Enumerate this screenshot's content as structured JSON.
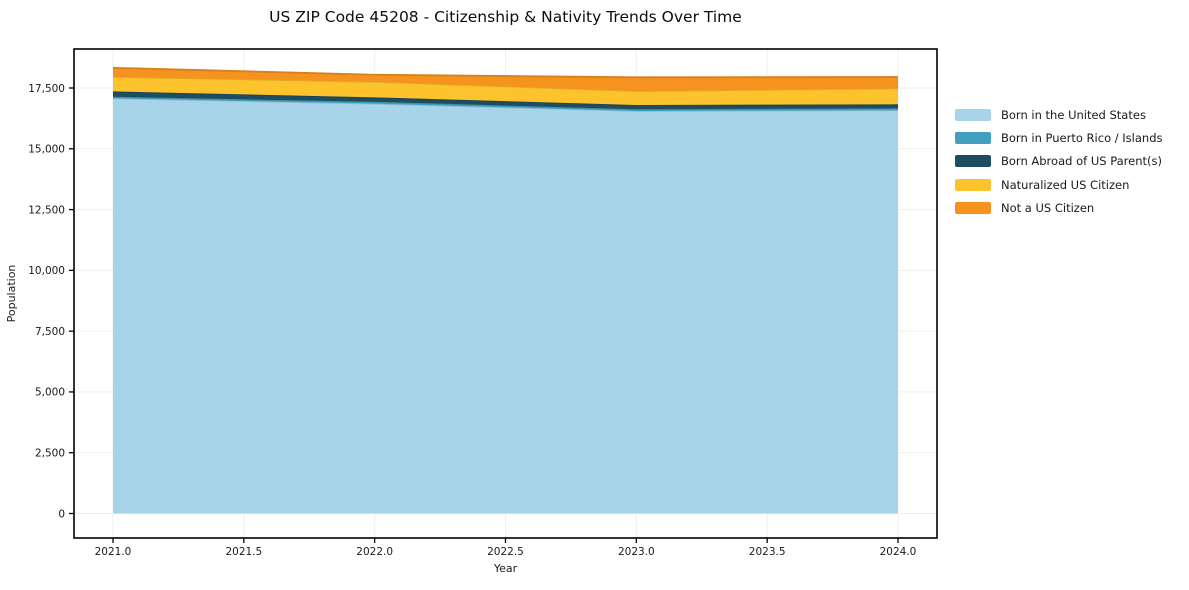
{
  "title": "US ZIP Code 45208 - Citizenship & Nativity Trends Over Time",
  "chart_data": {
    "type": "area",
    "stacked": true,
    "title": "US ZIP Code 45208 - Citizenship & Nativity Trends Over Time",
    "xlabel": "Year",
    "ylabel": "Population",
    "x": [
      2021,
      2022,
      2023,
      2024
    ],
    "series": [
      {
        "name": "Born in the United States",
        "color": "#A7D4E9",
        "values": [
          17075,
          16855,
          16555,
          16585
        ]
      },
      {
        "name": "Born in Puerto Rico / Islands",
        "color": "#41A0C0",
        "values": [
          65,
          80,
          70,
          80
        ]
      },
      {
        "name": "Born Abroad of US Parent(s)",
        "color": "#1E4D61",
        "values": [
          220,
          180,
          175,
          165
        ]
      },
      {
        "name": "Naturalized US Citizen",
        "color": "#FCC32D",
        "values": [
          600,
          640,
          575,
          655
        ]
      },
      {
        "name": "Not a US Citizen",
        "color": "#F6921E",
        "values": [
          370,
          290,
          565,
          465
        ]
      }
    ],
    "xticks": [
      2021.0,
      2021.5,
      2022.0,
      2022.5,
      2023.0,
      2023.5,
      2024.0
    ],
    "xtick_labels": [
      "2021.0",
      "2021.5",
      "2022.0",
      "2022.5",
      "2023.0",
      "2023.5",
      "2024.0"
    ],
    "yticks": [
      0,
      2500,
      5000,
      7500,
      10000,
      12500,
      15000,
      17500
    ],
    "ytick_labels": [
      "0",
      "2,500",
      "5,000",
      "7,500",
      "10,000",
      "12,500",
      "15,000",
      "17,500"
    ],
    "xlim": [
      2020.85,
      2024.15
    ],
    "ylim": [
      -1000,
      19100
    ],
    "grid": true,
    "grid_color": "#efefef",
    "axis_color": "#000000",
    "text_color": "#1a1a1a",
    "legend_position": "center-right-outside"
  }
}
